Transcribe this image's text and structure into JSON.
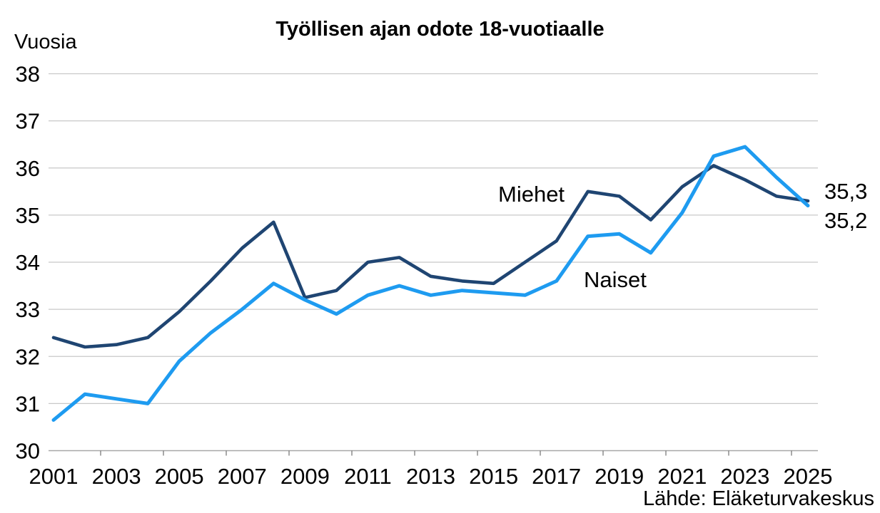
{
  "chart_data": {
    "type": "line",
    "title": "Työllisen ajan odote 18-vuotiaalle",
    "ylabel": "Vuosia",
    "source": "Lähde: Eläketurvakeskus",
    "x": [
      2001,
      2002,
      2003,
      2004,
      2005,
      2006,
      2007,
      2008,
      2009,
      2010,
      2011,
      2012,
      2013,
      2014,
      2015,
      2016,
      2017,
      2018,
      2019,
      2020,
      2021,
      2022,
      2023,
      2024,
      2025
    ],
    "x_label_interval": 2,
    "ylim": [
      30,
      38
    ],
    "ytick_step": 1,
    "grid": true,
    "legend_position": "inline-annotations",
    "colors": {
      "grid": "#C8C8C8",
      "axis": "#A8A8A8",
      "tick": "#707070",
      "text": "#000000"
    },
    "series": [
      {
        "name": "Miehet",
        "color": "#1F4572",
        "end_label": "35,3",
        "values": [
          32.4,
          32.2,
          32.25,
          32.4,
          32.95,
          33.6,
          34.3,
          34.85,
          33.25,
          33.4,
          34.0,
          34.1,
          33.7,
          33.6,
          33.55,
          34.0,
          34.45,
          35.5,
          35.4,
          34.9,
          35.6,
          36.05,
          35.75,
          35.4,
          35.3
        ]
      },
      {
        "name": "Naiset",
        "color": "#1E9BF0",
        "end_label": "35,2",
        "values": [
          30.65,
          31.2,
          31.1,
          31.0,
          31.9,
          32.5,
          33.0,
          33.55,
          33.2,
          32.9,
          33.3,
          33.5,
          33.3,
          33.4,
          33.35,
          33.3,
          33.6,
          34.55,
          34.6,
          34.2,
          35.05,
          36.25,
          36.45,
          35.8,
          35.2
        ]
      }
    ]
  }
}
